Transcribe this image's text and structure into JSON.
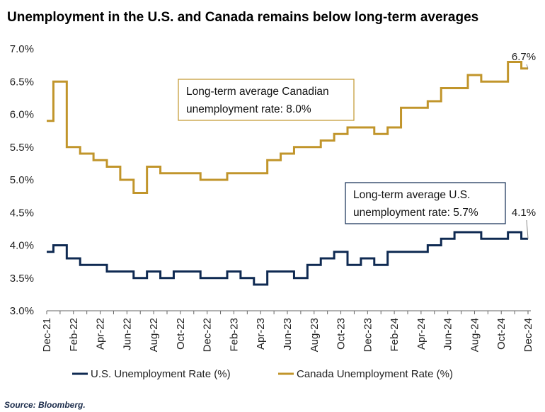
{
  "chart_data": {
    "type": "line",
    "title": "Unemployment in the U.S. and Canada remains below long-term averages",
    "source": "Source: Bloomberg.",
    "x": [
      "Dec-21",
      "Jan-22",
      "Feb-22",
      "Mar-22",
      "Apr-22",
      "May-22",
      "Jun-22",
      "Jul-22",
      "Aug-22",
      "Sep-22",
      "Oct-22",
      "Nov-22",
      "Dec-22",
      "Jan-23",
      "Feb-23",
      "Mar-23",
      "Apr-23",
      "May-23",
      "Jun-23",
      "Jul-23",
      "Aug-23",
      "Sep-23",
      "Oct-23",
      "Nov-23",
      "Dec-23",
      "Jan-24",
      "Feb-24",
      "Mar-24",
      "Apr-24",
      "May-24",
      "Jun-24",
      "Jul-24",
      "Aug-24",
      "Sep-24",
      "Oct-24",
      "Nov-24",
      "Dec-24"
    ],
    "x_tick_labels": [
      "Dec-21",
      "Feb-22",
      "Apr-22",
      "Jun-22",
      "Aug-22",
      "Oct-22",
      "Dec-22",
      "Feb-23",
      "Apr-23",
      "Jun-23",
      "Aug-23",
      "Oct-23",
      "Dec-23",
      "Feb-24",
      "Apr-24",
      "Jun-24",
      "Aug-24",
      "Oct-24",
      "Dec-24"
    ],
    "ylim": [
      3.0,
      7.0
    ],
    "y_ticks": [
      "3.0%",
      "3.5%",
      "4.0%",
      "4.5%",
      "5.0%",
      "5.5%",
      "6.0%",
      "6.5%",
      "7.0%"
    ],
    "series": [
      {
        "name": "U.S. Unemployment Rate (%)",
        "color": "#0f2a52",
        "values": [
          3.9,
          4.0,
          3.8,
          3.7,
          3.7,
          3.6,
          3.6,
          3.5,
          3.6,
          3.5,
          3.6,
          3.6,
          3.5,
          3.5,
          3.6,
          3.5,
          3.4,
          3.6,
          3.6,
          3.5,
          3.7,
          3.8,
          3.9,
          3.7,
          3.8,
          3.7,
          3.9,
          3.9,
          3.9,
          4.0,
          4.1,
          4.2,
          4.2,
          4.1,
          4.1,
          4.2,
          4.1
        ],
        "end_label": "4.1%"
      },
      {
        "name": "Canada Unemployment Rate (%)",
        "color": "#c1952b",
        "values": [
          5.9,
          6.5,
          5.5,
          5.4,
          5.3,
          5.2,
          5.0,
          4.8,
          5.2,
          5.1,
          5.1,
          5.1,
          5.0,
          5.0,
          5.1,
          5.1,
          5.1,
          5.3,
          5.4,
          5.5,
          5.5,
          5.6,
          5.7,
          5.8,
          5.8,
          5.7,
          5.8,
          6.1,
          6.1,
          6.2,
          6.4,
          6.4,
          6.6,
          6.5,
          6.5,
          6.8,
          6.7
        ],
        "end_label": "6.7%"
      }
    ],
    "annotations": [
      {
        "lines": [
          "Long-term average Canadian",
          "unemployment rate: 8.0%"
        ],
        "color": "#c1952b"
      },
      {
        "lines": [
          "Long-term average U.S.",
          "unemployment rate: 5.7%"
        ],
        "color": "#0f2a52"
      }
    ],
    "legend_position": "bottom",
    "grid": false
  }
}
